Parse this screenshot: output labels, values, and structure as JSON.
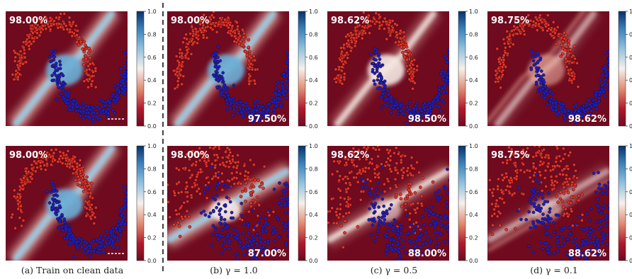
{
  "chart_data": {
    "type": "heatmap",
    "description_kind": "decision-boundary panels with two-moons scatter overlay",
    "colorbar": {
      "min": 0.0,
      "max": 1.0,
      "ticks": [
        "0.0",
        "0.2",
        "0.4",
        "0.6",
        "0.8",
        "1.0"
      ]
    },
    "columns": [
      {
        "caption": "(a) Train on clean data"
      },
      {
        "caption": "(b) γ = 1.0"
      },
      {
        "caption": "(c) γ = 0.5"
      },
      {
        "caption": "(d) γ = 0.1"
      }
    ],
    "panels": [
      {
        "row": 0,
        "col": 0,
        "accuracy_top": "98.00%",
        "accuracy_bottom": "",
        "data": "clean",
        "band_strength": 1.0,
        "boundary": "clean"
      },
      {
        "row": 0,
        "col": 1,
        "accuracy_top": "98.00%",
        "accuracy_bottom": "97.50%",
        "data": "clean",
        "band_strength": 1.0,
        "boundary": "clean"
      },
      {
        "row": 0,
        "col": 2,
        "accuracy_top": "98.62%",
        "accuracy_bottom": "98.50%",
        "data": "clean",
        "band_strength": 0.55,
        "boundary": "clean"
      },
      {
        "row": 0,
        "col": 3,
        "accuracy_top": "98.75%",
        "accuracy_bottom": "98.62%",
        "data": "clean",
        "band_strength": 0.3,
        "boundary": "clean"
      },
      {
        "row": 1,
        "col": 0,
        "accuracy_top": "98.00%",
        "accuracy_bottom": "",
        "data": "clean",
        "band_strength": 1.0,
        "boundary": "clean"
      },
      {
        "row": 1,
        "col": 1,
        "accuracy_top": "98.00%",
        "accuracy_bottom": "87.00%",
        "data": "noisy",
        "band_strength": 1.0,
        "boundary": "shifted"
      },
      {
        "row": 1,
        "col": 2,
        "accuracy_top": "98.62%",
        "accuracy_bottom": "88.00%",
        "data": "noisy",
        "band_strength": 0.55,
        "boundary": "shifted"
      },
      {
        "row": 1,
        "col": 3,
        "accuracy_top": "98.75%",
        "accuracy_bottom": "88.62%",
        "data": "noisy",
        "band_strength": 0.3,
        "boundary": "shifted"
      }
    ],
    "classes": [
      {
        "color": "#e8322a"
      },
      {
        "color": "#1a1fc8"
      }
    ],
    "colors": {
      "low": "#6f0a1f",
      "mid": "#f7f0ec",
      "high": "#08306b"
    }
  }
}
